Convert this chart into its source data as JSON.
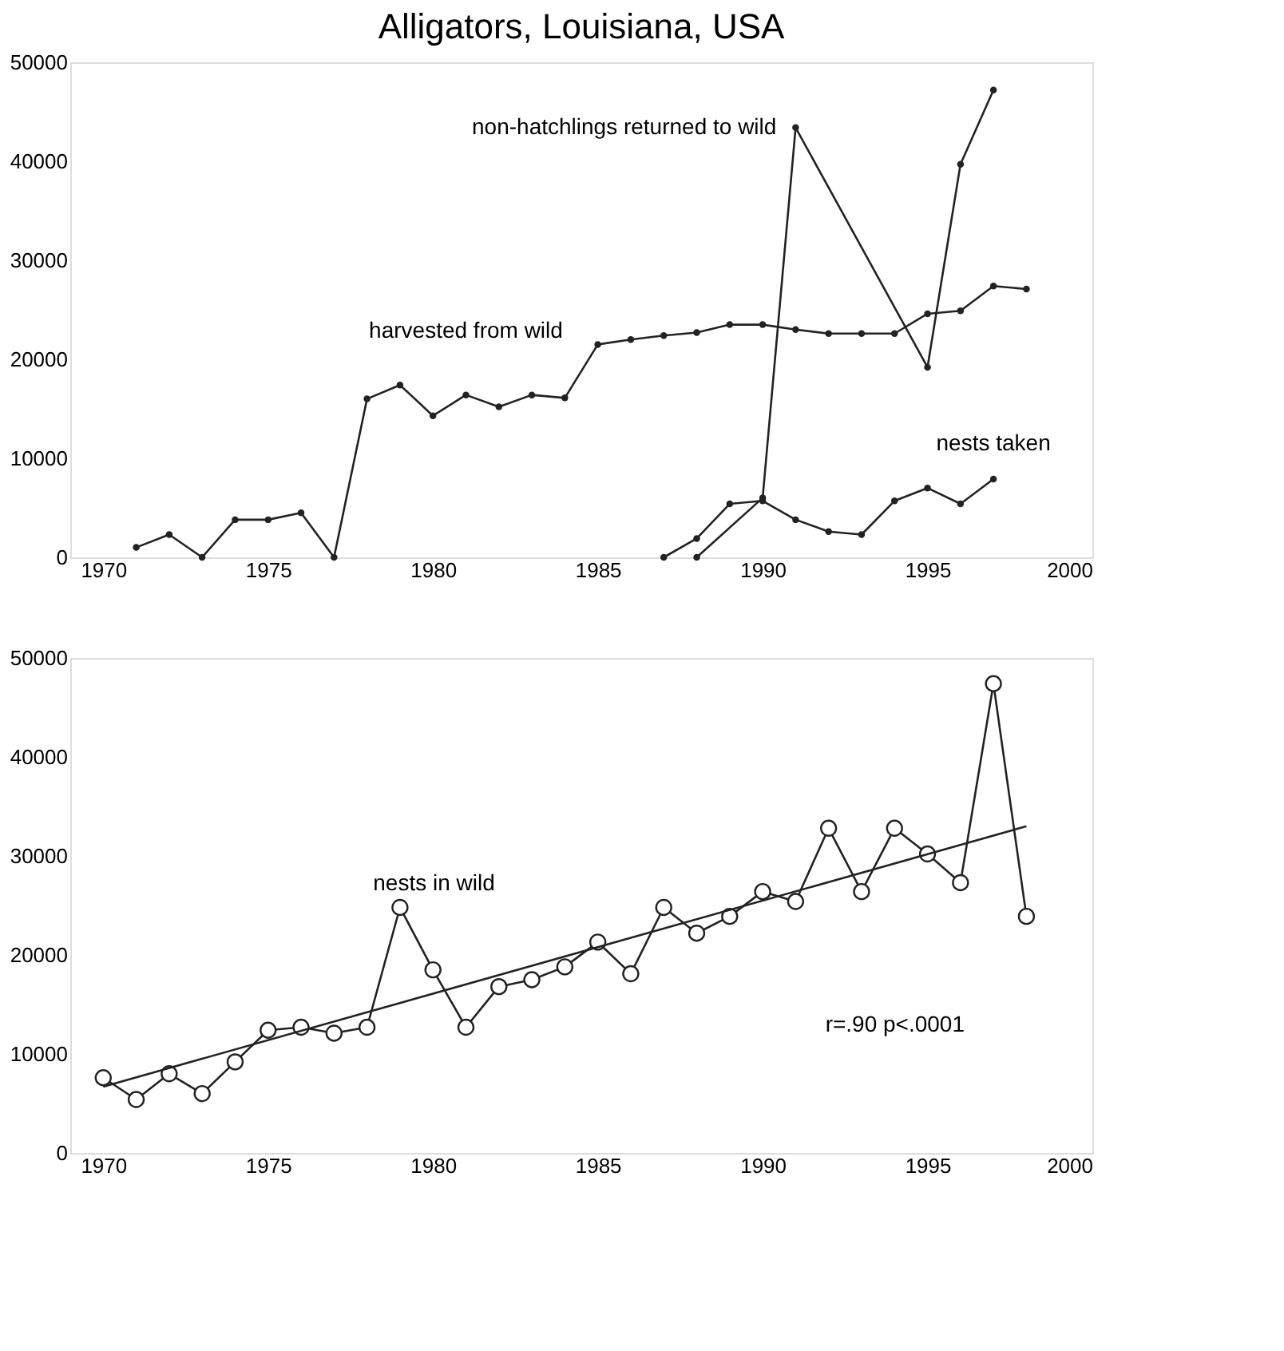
{
  "chart_data": [
    {
      "type": "line",
      "title": "Alligators, Louisiana, USA",
      "xlim": [
        1969,
        2000
      ],
      "xticks": [
        1970,
        1975,
        1980,
        1985,
        1990,
        1995,
        2000
      ],
      "ylim": [
        0,
        50000
      ],
      "yticks": [
        0,
        10000,
        20000,
        30000,
        40000,
        50000
      ],
      "grid": false,
      "marker": "circle",
      "line_style": "solid",
      "series": [
        {
          "name": "non-hatchlings returned to wild",
          "color": "#222222",
          "x": [
            1988,
            1990,
            1991,
            1995,
            1996,
            1997
          ],
          "values": [
            0,
            6000,
            43400,
            19200,
            39700,
            47200
          ]
        },
        {
          "name": "harvested from wild",
          "color": "#222222",
          "x": [
            1971,
            1972,
            1973,
            1974,
            1975,
            1976,
            1977,
            1978,
            1979,
            1980,
            1981,
            1982,
            1983,
            1984,
            1985,
            1986,
            1987,
            1988,
            1989,
            1990,
            1991,
            1992,
            1993,
            1994,
            1995,
            1996,
            1997,
            1998
          ],
          "values": [
            1000,
            2300,
            0,
            3800,
            3800,
            4500,
            0,
            16000,
            17400,
            14300,
            16400,
            15200,
            16400,
            16100,
            21500,
            22000,
            22400,
            22700,
            23500,
            23500,
            23000,
            22600,
            22600,
            22600,
            24600,
            24900,
            27400,
            27100
          ]
        },
        {
          "name": "nests taken",
          "color": "#222222",
          "x": [
            1987,
            1988,
            1989,
            1990,
            1991,
            1992,
            1993,
            1994,
            1995,
            1996,
            1997
          ],
          "values": [
            0,
            1900,
            5400,
            5700,
            3800,
            2600,
            2300,
            5700,
            7000,
            5400,
            7900
          ]
        }
      ]
    },
    {
      "type": "line",
      "xlim": [
        1969,
        2000
      ],
      "xticks": [
        1970,
        1975,
        1980,
        1985,
        1990,
        1995,
        2000
      ],
      "ylim": [
        0,
        50000
      ],
      "yticks": [
        0,
        10000,
        20000,
        30000,
        40000,
        50000
      ],
      "grid": false,
      "marker": "circle",
      "line_style": "solid",
      "annotations": [
        "r=.90  p<.0001"
      ],
      "series": [
        {
          "name": "nests in wild",
          "color": "#222222",
          "x": [
            1970,
            1971,
            1972,
            1973,
            1974,
            1975,
            1976,
            1977,
            1978,
            1979,
            1980,
            1981,
            1982,
            1983,
            1984,
            1985,
            1986,
            1987,
            1988,
            1989,
            1990,
            1991,
            1992,
            1993,
            1994,
            1995,
            1996,
            1997,
            1998
          ],
          "values": [
            7600,
            5400,
            8000,
            6000,
            9200,
            12400,
            12700,
            12100,
            12700,
            24800,
            18500,
            12700,
            16800,
            17500,
            18800,
            21300,
            18100,
            24800,
            22200,
            23900,
            26400,
            25400,
            32800,
            26400,
            32800,
            30200,
            27300,
            47400,
            23900
          ]
        },
        {
          "type": "line",
          "marker": "none",
          "color": "#222222",
          "x": [
            1970,
            1998
          ],
          "values": [
            6700,
            33000
          ]
        }
      ]
    }
  ]
}
